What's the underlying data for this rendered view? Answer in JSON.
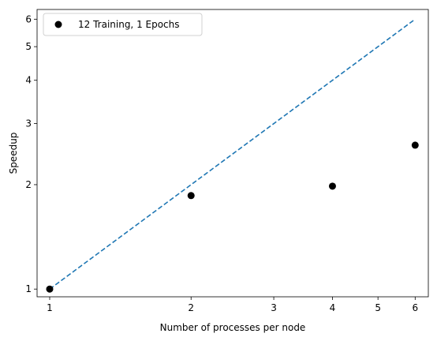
{
  "chart_data": {
    "type": "scatter",
    "title": "",
    "xlabel": "Number of processes per node",
    "ylabel": "Speedup",
    "xscale": "log",
    "yscale": "log",
    "xlim": [
      0.94,
      6.4
    ],
    "ylim": [
      0.95,
      6.4
    ],
    "xticks": [
      1,
      2,
      3,
      4,
      5,
      6
    ],
    "xtick_labels": [
      "1",
      "2",
      "3",
      "4",
      "5",
      "6"
    ],
    "yticks": [
      1,
      2,
      3,
      4,
      5,
      6
    ],
    "ytick_labels": [
      "1",
      "2",
      "3",
      "4",
      "5",
      "6"
    ],
    "grid": false,
    "legend_position": "top-left",
    "series": [
      {
        "name": "12 Training, 1 Epochs",
        "style": "markers",
        "color": "#000000",
        "x": [
          1,
          2,
          4,
          6
        ],
        "y": [
          1.0,
          1.86,
          1.98,
          2.6
        ]
      },
      {
        "style": "dashed-line",
        "color": "#1f77b4",
        "x": [
          1,
          6
        ],
        "y": [
          1,
          6
        ]
      }
    ]
  }
}
